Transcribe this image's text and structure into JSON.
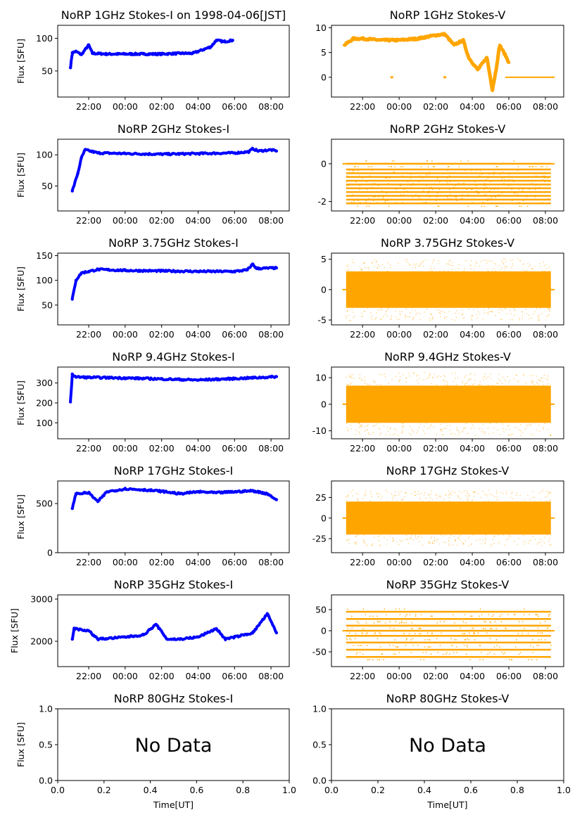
{
  "figure": {
    "title": "",
    "x_ticks": [
      "22:00",
      "00:00",
      "02:00",
      "04:00",
      "06:00",
      "08:00"
    ],
    "xlabel": "Time[UT]",
    "ylabel": "Flux [SFU]",
    "colors": {
      "stokes_i": "#0000ff",
      "stokes_v": "#ffa500"
    }
  },
  "chart_data": [
    {
      "title": "NoRP 1GHz Stokes-I on 1998-04-06[JST]",
      "type": "scatter",
      "series": "I",
      "ylim": [
        10,
        120
      ],
      "yticks": [
        50,
        100
      ],
      "x": [
        21.0,
        21.1,
        21.3,
        21.6,
        22.0,
        22.2,
        23.0,
        24.0,
        25.0,
        26.0,
        27.0,
        27.7,
        28.2,
        28.7,
        29.0,
        29.4,
        29.9
      ],
      "y": [
        55,
        78,
        80,
        75,
        90,
        77,
        76,
        76,
        76,
        76,
        77,
        77,
        82,
        87,
        97,
        95,
        97
      ]
    },
    {
      "title": "NoRP 1GHz Stokes-V",
      "type": "scatter",
      "series": "V",
      "ylim": [
        -4,
        10.5
      ],
      "yticks": [
        0,
        5,
        10
      ],
      "x": [
        21.0,
        21.5,
        22.0,
        23.0,
        24.0,
        25.0,
        26.0,
        26.5,
        27.0,
        27.5,
        27.8,
        28.3,
        28.8,
        29.1,
        29.3,
        29.5,
        29.8,
        30.0
      ],
      "y": [
        6.5,
        7.8,
        7.8,
        7.5,
        7.5,
        7.8,
        8.5,
        8.7,
        6.5,
        7.5,
        4.0,
        1.5,
        4.0,
        -2.5,
        1.5,
        6.5,
        4.5,
        3.0
      ],
      "flat": {
        "from": 29.8,
        "to": 32.5,
        "value": 0
      },
      "ticks_at_zero": [
        23.6,
        26.5
      ]
    },
    {
      "title": "NoRP 2GHz Stokes-I",
      "type": "scatter",
      "series": "I",
      "ylim": [
        10,
        125
      ],
      "yticks": [
        50,
        100
      ],
      "x": [
        21.1,
        21.4,
        21.6,
        21.8,
        22.5,
        24.0,
        26.0,
        28.0,
        30.0,
        30.8,
        31.0,
        31.3,
        32.0,
        32.3
      ],
      "y": [
        42,
        70,
        95,
        108,
        103,
        102,
        101,
        102,
        103,
        105,
        110,
        106,
        108,
        106
      ]
    },
    {
      "title": "NoRP 2GHz Stokes-V",
      "type": "scatter",
      "series": "V",
      "ylim": [
        -2.5,
        1.3
      ],
      "yticks": [
        -2,
        0
      ],
      "levels": [
        0,
        -0.3,
        -0.5,
        -0.7,
        -0.9,
        -1.1,
        -1.3,
        -1.5,
        -1.7,
        -1.9,
        -2.1
      ]
    },
    {
      "title": "NoRP 3.75GHz Stokes-I",
      "type": "scatter",
      "series": "I",
      "ylim": [
        10,
        155
      ],
      "yticks": [
        50,
        100,
        150
      ],
      "x": [
        21.1,
        21.3,
        21.6,
        22.0,
        22.5,
        24.0,
        26.0,
        28.0,
        30.0,
        30.7,
        31.0,
        31.2,
        32.3
      ],
      "y": [
        62,
        100,
        115,
        118,
        122,
        120,
        119,
        118,
        118,
        121,
        133,
        124,
        125
      ]
    },
    {
      "title": "NoRP 3.75GHz Stokes-V",
      "type": "scatter",
      "series": "V",
      "ylim": [
        -5.8,
        6
      ],
      "yticks": [
        -5,
        0,
        5
      ],
      "band": {
        "lo": -3,
        "hi": 3
      }
    },
    {
      "title": "NoRP 9.4GHz Stokes-I",
      "type": "scatter",
      "series": "I",
      "ylim": [
        20,
        380
      ],
      "yticks": [
        100,
        200,
        300
      ],
      "x": [
        21.0,
        21.1,
        21.3,
        22.0,
        24.0,
        26.0,
        28.0,
        30.0,
        32.0,
        32.3
      ],
      "y": [
        205,
        345,
        330,
        328,
        325,
        320,
        315,
        322,
        330,
        332
      ]
    },
    {
      "title": "NoRP 9.4GHz Stokes-V",
      "type": "scatter",
      "series": "V",
      "ylim": [
        -13,
        14
      ],
      "yticks": [
        -10,
        0,
        10
      ],
      "band": {
        "lo": -7,
        "hi": 7
      }
    },
    {
      "title": "NoRP 17GHz Stokes-I",
      "type": "scatter",
      "series": "I",
      "ylim": [
        0,
        730
      ],
      "yticks": [
        0,
        500
      ],
      "x": [
        21.1,
        21.3,
        22.0,
        22.5,
        23.0,
        24.0,
        25.0,
        26.0,
        27.0,
        28.0,
        29.0,
        30.0,
        31.0,
        31.8,
        32.3
      ],
      "y": [
        450,
        600,
        610,
        520,
        620,
        650,
        640,
        625,
        600,
        620,
        610,
        620,
        630,
        600,
        540
      ]
    },
    {
      "title": "NoRP 17GHz Stokes-V",
      "type": "scatter",
      "series": "V",
      "ylim": [
        -42,
        45
      ],
      "yticks": [
        -25,
        0,
        25
      ],
      "band": {
        "lo": -20,
        "hi": 20
      }
    },
    {
      "title": "NoRP 35GHz Stokes-I",
      "type": "scatter",
      "series": "I",
      "ylim": [
        1400,
        3100
      ],
      "yticks": [
        2000,
        3000
      ],
      "x": [
        21.1,
        21.2,
        22.0,
        22.5,
        24.0,
        25.0,
        25.7,
        26.3,
        27.0,
        28.0,
        29.0,
        29.5,
        30.0,
        31.0,
        31.8,
        32.3
      ],
      "y": [
        2050,
        2300,
        2250,
        2050,
        2100,
        2150,
        2400,
        2050,
        2050,
        2100,
        2300,
        2050,
        2100,
        2200,
        2650,
        2200
      ]
    },
    {
      "title": "NoRP 35GHz Stokes-V",
      "type": "scatter",
      "series": "V",
      "ylim": [
        -85,
        85
      ],
      "yticks": [
        -50,
        0,
        50
      ],
      "levels": [
        45,
        28,
        12,
        0,
        -12,
        -28,
        -45,
        -62
      ]
    },
    {
      "title": "NoRP 80GHz Stokes-I",
      "type": "empty",
      "message": "No Data",
      "xlim": [
        0,
        1
      ],
      "ylim": [
        0,
        1
      ],
      "xticks": [
        "0.0",
        "0.2",
        "0.4",
        "0.6",
        "0.8",
        "1.0"
      ],
      "yticks": [
        "0.0",
        "0.5",
        "1.0"
      ]
    },
    {
      "title": "NoRP 80GHz Stokes-V",
      "type": "empty",
      "message": "No Data",
      "xlim": [
        0,
        1
      ],
      "ylim": [
        0,
        1
      ],
      "xticks": [
        "0.0",
        "0.2",
        "0.4",
        "0.6",
        "0.8",
        "1.0"
      ],
      "yticks": [
        "0.0",
        "0.5",
        "1.0"
      ]
    }
  ]
}
